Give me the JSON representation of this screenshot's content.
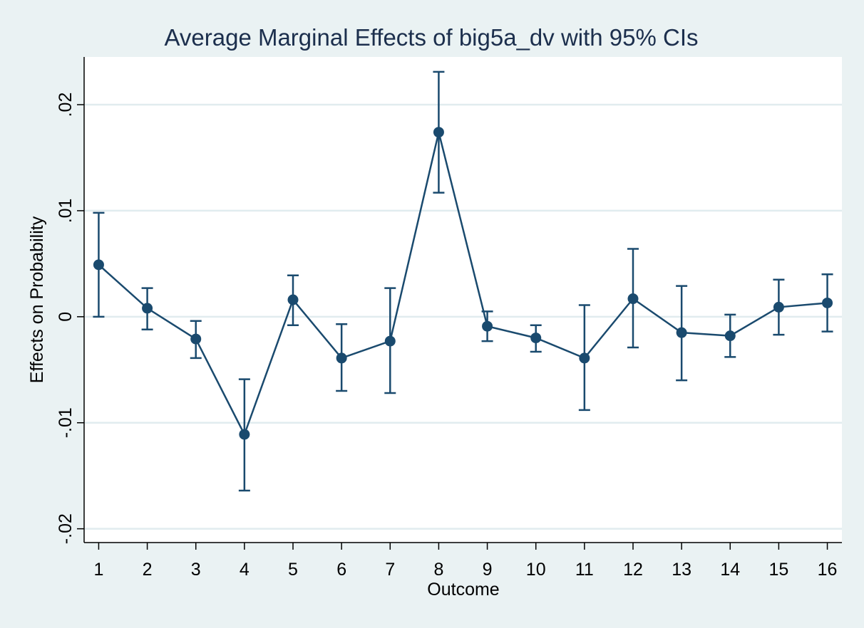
{
  "chart_data": {
    "type": "line",
    "title": "Average Marginal Effects of big5a_dv with 95% CIs",
    "xlabel": "Outcome",
    "ylabel": "Effects on Probability",
    "x_ticks": [
      "1",
      "2",
      "3",
      "4",
      "5",
      "6",
      "7",
      "8",
      "9",
      "10",
      "11",
      "12",
      "13",
      "14",
      "15",
      "16"
    ],
    "y_ticks": [
      {
        "value": -0.02,
        "label": "-.02"
      },
      {
        "value": -0.01,
        "label": "-.01"
      },
      {
        "value": 0,
        "label": "0"
      },
      {
        "value": 0.01,
        "label": ".01"
      },
      {
        "value": 0.02,
        "label": ".02"
      }
    ],
    "ylim": [
      -0.0213,
      0.0245
    ],
    "xlim": [
      0.7,
      16.3
    ],
    "grid": true,
    "colors": {
      "series": "#1a4a6e",
      "grid": "#e1ecef",
      "background": "#eaf2f3",
      "plot_background": "#ffffff",
      "title": "#1c2f4d"
    },
    "series": [
      {
        "x": [
          1,
          2,
          3,
          4,
          5,
          6,
          7,
          8,
          9,
          10,
          11,
          12,
          13,
          14,
          15,
          16
        ],
        "y": [
          0.0049,
          0.0008,
          -0.0021,
          -0.0111,
          0.0016,
          -0.0039,
          -0.0023,
          0.0174,
          -0.0009,
          -0.002,
          -0.0039,
          0.0017,
          -0.0015,
          -0.0018,
          0.0009,
          0.0013
        ],
        "ci_low": [
          0.0,
          -0.0012,
          -0.0039,
          -0.0164,
          -0.0008,
          -0.007,
          -0.0072,
          0.0117,
          -0.0023,
          -0.0033,
          -0.0088,
          -0.0029,
          -0.006,
          -0.0038,
          -0.0017,
          -0.0014
        ],
        "ci_high": [
          0.0098,
          0.0027,
          -0.0004,
          -0.0059,
          0.0039,
          -0.0007,
          0.0027,
          0.0231,
          0.0005,
          -0.0008,
          0.0011,
          0.0064,
          0.0029,
          0.0002,
          0.0035,
          0.004
        ]
      }
    ]
  }
}
